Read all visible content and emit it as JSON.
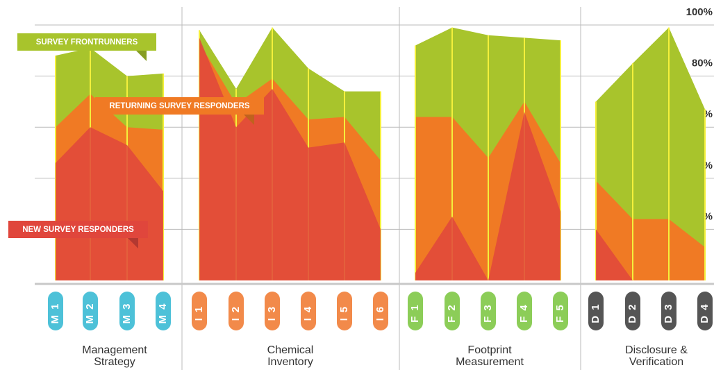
{
  "chart_data": {
    "type": "area",
    "groups": [
      {
        "name": "Management Strategy",
        "color": "#4dc1d8",
        "categories": [
          "M1",
          "M2",
          "M3",
          "M4"
        ]
      },
      {
        "name": "Chemical Inventory",
        "color": "#f28a4a",
        "categories": [
          "I1",
          "I2",
          "I3",
          "I4",
          "I5",
          "I6"
        ]
      },
      {
        "name": "Footprint Measurement",
        "color": "#8ccd58",
        "categories": [
          "F1",
          "F2",
          "F3",
          "F4",
          "F5"
        ]
      },
      {
        "name": "Disclosure & Verification",
        "color": "#555555",
        "categories": [
          "D1",
          "D2",
          "D3",
          "D4"
        ]
      }
    ],
    "series": [
      {
        "name": "SURVEY FRONTRUNNERS",
        "color": "#a8c42c",
        "values": [
          88,
          91,
          80,
          81,
          98,
          75,
          99,
          83,
          74,
          74,
          92,
          99,
          96,
          95,
          94,
          70,
          85,
          99,
          67
        ]
      },
      {
        "name": "RETURNING SURVEY RESPONDERS",
        "color": "#f07a24",
        "values": [
          60,
          73,
          60,
          59,
          93,
          69,
          79,
          63,
          64,
          47,
          64,
          64,
          48,
          70,
          46,
          39,
          24,
          24,
          13
        ]
      },
      {
        "name": "NEW SURVEY RESPONDERS",
        "color": "#e0463c",
        "values": [
          46,
          60,
          53,
          35,
          95,
          60,
          75,
          52,
          54,
          20,
          3,
          25,
          0,
          66,
          27,
          20,
          0,
          0,
          0
        ]
      }
    ],
    "ylim": [
      0,
      100
    ],
    "yticks": [
      {
        "value": 20,
        "label": "20%"
      },
      {
        "value": 40,
        "label": "40%"
      },
      {
        "value": 60,
        "label": "60%"
      },
      {
        "value": 80,
        "label": "80%"
      },
      {
        "value": 100,
        "label": "100%"
      }
    ],
    "grid": true
  }
}
